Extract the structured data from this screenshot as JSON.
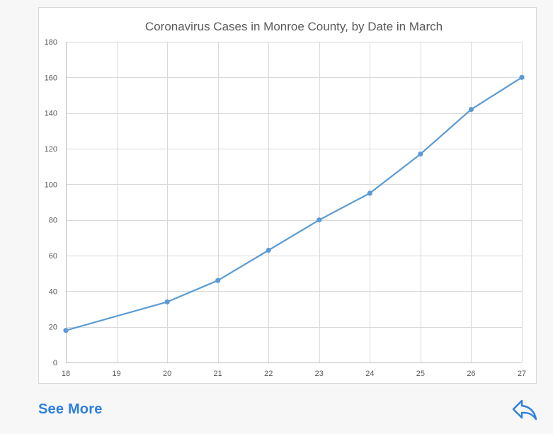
{
  "chart_data": {
    "type": "line",
    "title": "Coronavirus Cases in Monroe County, by Date in March",
    "xlabel": "",
    "ylabel": "",
    "x_ticks": [
      18,
      19,
      20,
      21,
      22,
      23,
      24,
      25,
      26,
      27
    ],
    "y_ticks": [
      0,
      20,
      40,
      60,
      80,
      100,
      120,
      140,
      160,
      180
    ],
    "xlim": [
      18,
      27
    ],
    "ylim": [
      0,
      180
    ],
    "grid": true,
    "series": [
      {
        "x": [
          18,
          20,
          21,
          22,
          23,
          24,
          25,
          26,
          27
        ],
        "values": [
          18,
          34,
          46,
          63,
          80,
          95,
          117,
          142,
          160
        ],
        "color": "#5b9bd5"
      }
    ]
  },
  "footer": {
    "see_more_label": "See More",
    "link_color": "#2f7fe0",
    "share_icon": "reply-arrow-icon"
  }
}
